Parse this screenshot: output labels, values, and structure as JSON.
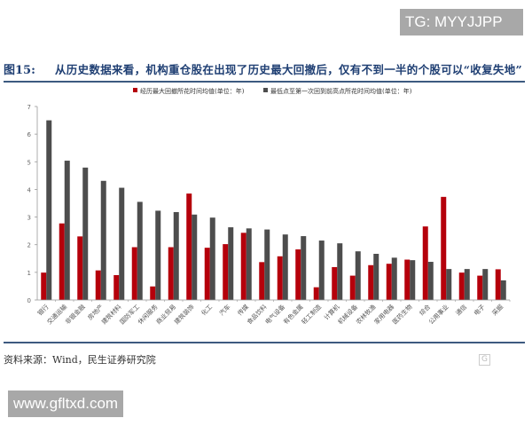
{
  "watermarks": {
    "top": "TG: MYYJJPP",
    "bottom": "www.gfltxd.com"
  },
  "figure": {
    "label": "图15:",
    "title": "从历史数据来看，机构重仓股在出现了历史最大回撤后，仅有不到一半的个股可以“收复失地”",
    "source": "资料来源：Wind，民生证券研究院",
    "logo_text": "格隆汇"
  },
  "chart_data": {
    "type": "bar",
    "title": "",
    "xlabel": "",
    "ylabel": "",
    "ylim": [
      0,
      7
    ],
    "yticks": [
      "0",
      "1",
      "2",
      "3",
      "4",
      "5",
      "6",
      "7"
    ],
    "grid": false,
    "legend_position": "top",
    "categories": [
      "银行",
      "交通运输",
      "非银金融",
      "房地产",
      "建筑材料",
      "国防军工",
      "休闲服务",
      "商业贸易",
      "建筑装饰",
      "化工",
      "汽车",
      "传媒",
      "食品饮料",
      "电气设备",
      "有色金属",
      "轻工制造",
      "计算机",
      "机械设备",
      "农林牧渔",
      "家用电器",
      "医药生物",
      "综合",
      "公用事业",
      "通信",
      "电子",
      "采掘"
    ],
    "series": [
      {
        "name": "经历最大回撤所花时间均值(单位：年)",
        "color": "#b5000b",
        "values": [
          0.99,
          2.77,
          2.3,
          1.07,
          0.9,
          1.91,
          0.49,
          1.91,
          3.85,
          1.89,
          2.02,
          2.43,
          1.37,
          1.58,
          1.83,
          0.46,
          1.19,
          0.88,
          1.26,
          1.31,
          1.46,
          2.66,
          3.73,
          0.99,
          0.88,
          1.11
        ]
      },
      {
        "name": "最低点至第一次回到前高点所花时间均值(单位：年)",
        "color": "#4d4d4d",
        "values": [
          6.5,
          5.04,
          4.79,
          4.31,
          4.06,
          3.55,
          3.23,
          3.18,
          3.09,
          2.98,
          2.63,
          2.59,
          2.55,
          2.37,
          2.31,
          2.15,
          2.05,
          1.76,
          1.67,
          1.53,
          1.44,
          1.38,
          1.12,
          1.12,
          1.12,
          0.71
        ]
      }
    ]
  }
}
